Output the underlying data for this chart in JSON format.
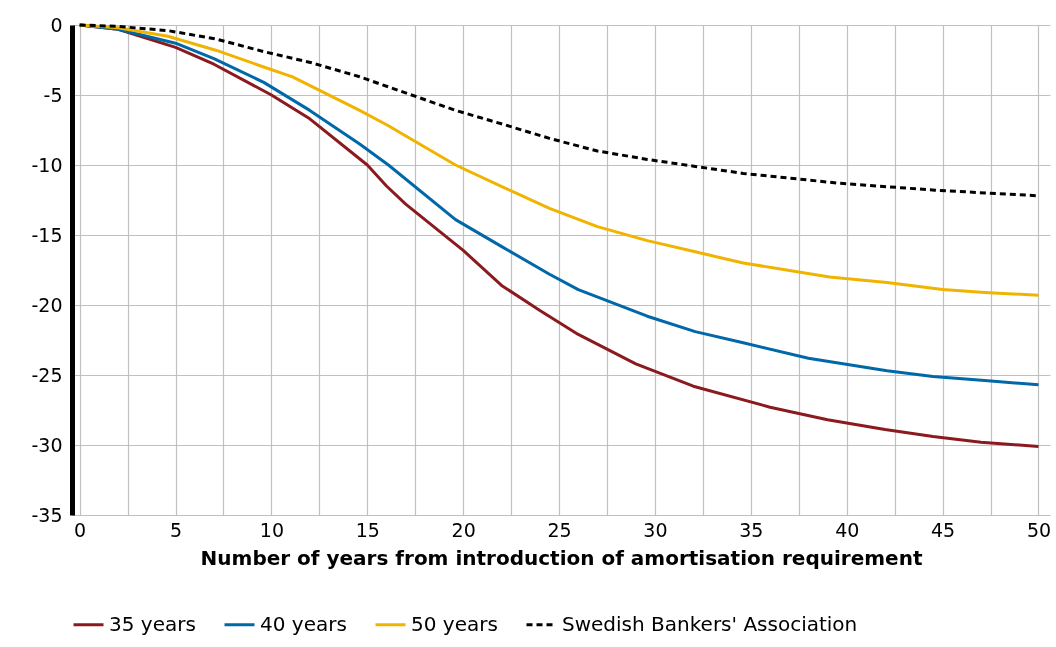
{
  "chart_data": {
    "type": "line",
    "xlabel": "Number of years from introduction of amortisation requirement",
    "xlim": [
      -0.4,
      50.6
    ],
    "ylim": [
      -35,
      0
    ],
    "xticks": [
      0,
      {
        "value": 2.5,
        "label": null
      },
      5,
      {
        "value": 7.5,
        "label": null
      },
      10,
      {
        "value": 12.5,
        "label": null
      },
      15,
      {
        "value": 17.5,
        "label": null
      },
      20,
      {
        "value": 22.5,
        "label": null
      },
      25,
      {
        "value": 27.5,
        "label": null
      },
      30,
      {
        "value": 32.5,
        "label": null
      },
      35,
      {
        "value": 37.5,
        "label": null
      },
      40,
      {
        "value": 42.5,
        "label": null
      },
      45,
      {
        "value": 47.5,
        "label": null
      },
      50
    ],
    "yticks": [
      0,
      -5,
      -10,
      -15,
      -20,
      -25,
      -30,
      -35
    ],
    "grid": true,
    "legend": "bottom",
    "marker": "none",
    "series": [
      {
        "name": "35 years",
        "color": "#8b1a1f",
        "line_style": "solid",
        "x": [
          0,
          2,
          5,
          7,
          10,
          12,
          15,
          16,
          17,
          20,
          22,
          24,
          26,
          29,
          32,
          36,
          39,
          42,
          44.5,
          47,
          50
        ],
        "values": [
          0,
          -0.3,
          -1.6,
          -2.8,
          -5.0,
          -6.7,
          -10.0,
          -11.5,
          -12.8,
          -16.1,
          -18.6,
          -20.4,
          -22.1,
          -24.2,
          -25.8,
          -27.3,
          -28.2,
          -28.9,
          -29.4,
          -29.8,
          -30.1
        ]
      },
      {
        "name": "40 years",
        "color": "#0068a8",
        "line_style": "solid",
        "x": [
          0,
          2,
          5,
          7,
          9.6,
          12,
          14.6,
          16.1,
          19.6,
          22.1,
          24.5,
          26,
          29.6,
          32.1,
          34.6,
          38,
          42.1,
          44.5,
          47.2,
          50
        ],
        "values": [
          0,
          -0.3,
          -1.3,
          -2.4,
          -4.1,
          -6.1,
          -8.5,
          -10.0,
          -13.9,
          -15.9,
          -17.8,
          -18.9,
          -20.8,
          -21.9,
          -22.7,
          -23.8,
          -24.7,
          -25.1,
          -25.4,
          -25.7
        ]
      },
      {
        "name": "50 years",
        "color": "#f0b400",
        "line_style": "solid",
        "x": [
          0,
          2,
          4.6,
          7.1,
          9.6,
          11.1,
          14.6,
          16.1,
          17.1,
          19.6,
          22.1,
          24.5,
          27,
          29.6,
          32.1,
          34.6,
          39.1,
          42.1,
          45,
          47.2,
          50
        ],
        "values": [
          0,
          -0.2,
          -0.8,
          -1.8,
          -3.0,
          -3.7,
          -6.1,
          -7.2,
          -8.0,
          -10.0,
          -11.6,
          -13.1,
          -14.4,
          -15.4,
          -16.2,
          -17.0,
          -18.0,
          -18.4,
          -18.9,
          -19.1,
          -19.3
        ]
      },
      {
        "name": "Swedish Bankers' Association",
        "color": "#000000",
        "line_style": "dashed",
        "x": [
          0,
          2,
          4.6,
          7.1,
          9.6,
          12.1,
          14.6,
          17.1,
          19.6,
          22.1,
          24.5,
          27,
          29.6,
          32.1,
          34.6,
          39.6,
          44.6,
          50
        ],
        "values": [
          0,
          -0.1,
          -0.4,
          -1.0,
          -1.9,
          -2.7,
          -3.7,
          -4.9,
          -6.1,
          -7.1,
          -8.1,
          -9.0,
          -9.6,
          -10.1,
          -10.6,
          -11.3,
          -11.8,
          -12.2
        ]
      }
    ]
  }
}
